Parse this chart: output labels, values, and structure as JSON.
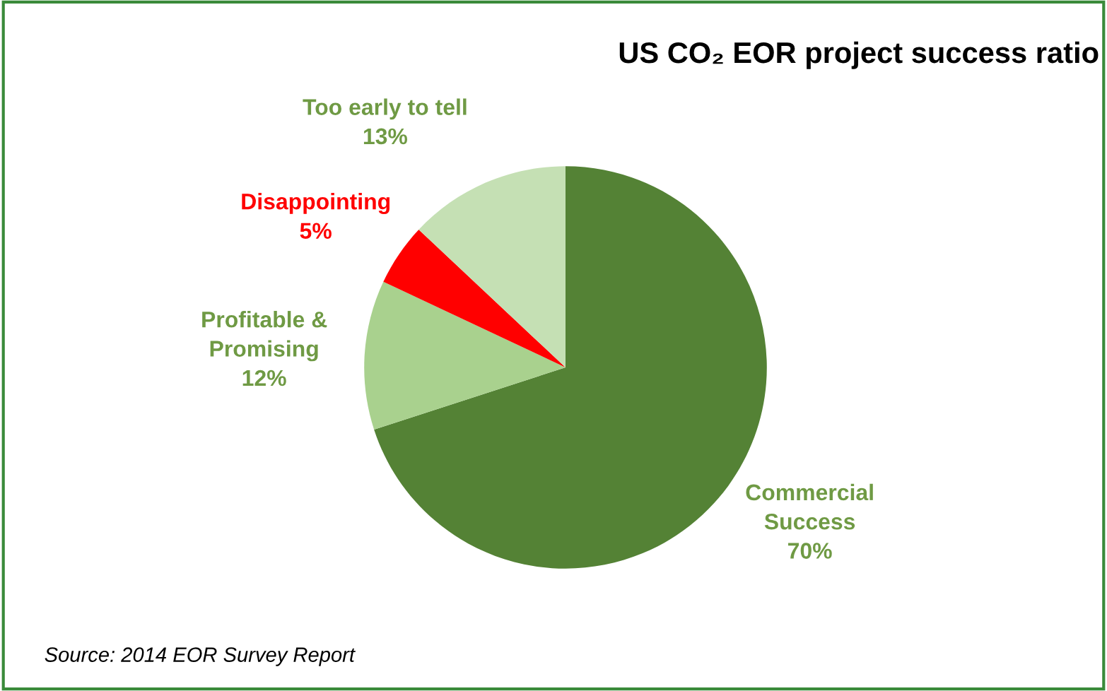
{
  "chart_data": {
    "type": "pie",
    "title": "US CO₂ EOR project success ratio",
    "categories": [
      "Commercial\nSuccess",
      "Profitable &\nPromising",
      "Disappointing",
      "Too early to tell"
    ],
    "values": [
      70,
      12,
      5,
      13
    ],
    "colors": [
      "#548235",
      "#a9d18e",
      "#ff0000",
      "#c5e0b4"
    ],
    "value_labels": [
      "70%",
      "12%",
      "5%",
      "13%"
    ],
    "annotations": [
      "Source: 2014 EOR Survey Report"
    ]
  }
}
